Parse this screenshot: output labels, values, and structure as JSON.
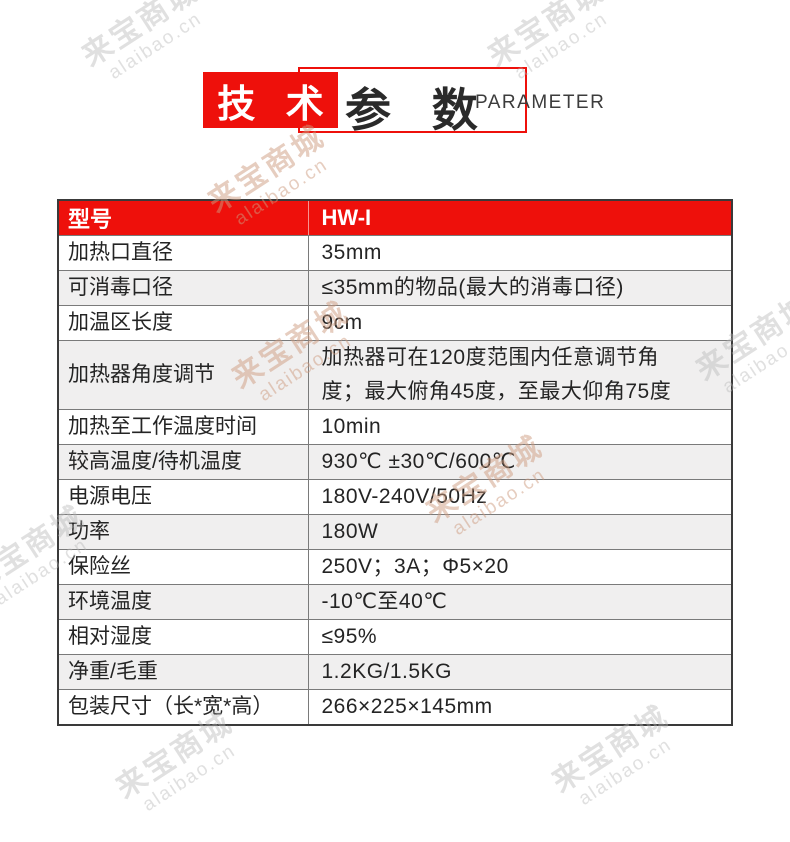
{
  "title": {
    "left": "技 术",
    "right": "参 数",
    "subtitle": "PARAMETER"
  },
  "watermark": {
    "line1": "来宝商城",
    "line2": "alaibao.cn"
  },
  "colors": {
    "accent_red": "#ee100b",
    "alt_row_bg": "#f0efef",
    "border_dark": "#3a3a3a",
    "text": "#242424"
  },
  "table": {
    "header": {
      "label": "型号",
      "value": "HW-I"
    },
    "rows": [
      {
        "label": "加热口直径",
        "value": "35mm"
      },
      {
        "label": "可消毒口径",
        "value": "≤35mm的物品(最大的消毒口径)"
      },
      {
        "label": "加温区长度",
        "value": "9cm"
      },
      {
        "label": "加热器角度调节",
        "value": "加热器可在120度范围内任意调节角\n度；最大俯角45度，至最大仰角75度"
      },
      {
        "label": "加热至工作温度时间",
        "value": "10min"
      },
      {
        "label": "较高温度/待机温度",
        "value": "930℃ ±30℃/600℃"
      },
      {
        "label": "电源电压",
        "value": "180V-240V/50Hz"
      },
      {
        "label": "功率",
        "value": "180W"
      },
      {
        "label": "保险丝",
        "value": "250V；3A；Φ5×20"
      },
      {
        "label": "环境温度",
        "value": "-10℃至40℃"
      },
      {
        "label": "相对湿度",
        "value": "≤95%"
      },
      {
        "label": "净重/毛重",
        "value": "1.2KG/1.5KG"
      },
      {
        "label": "包装尺寸（长*宽*高）",
        "value": "266×225×145mm"
      }
    ]
  }
}
